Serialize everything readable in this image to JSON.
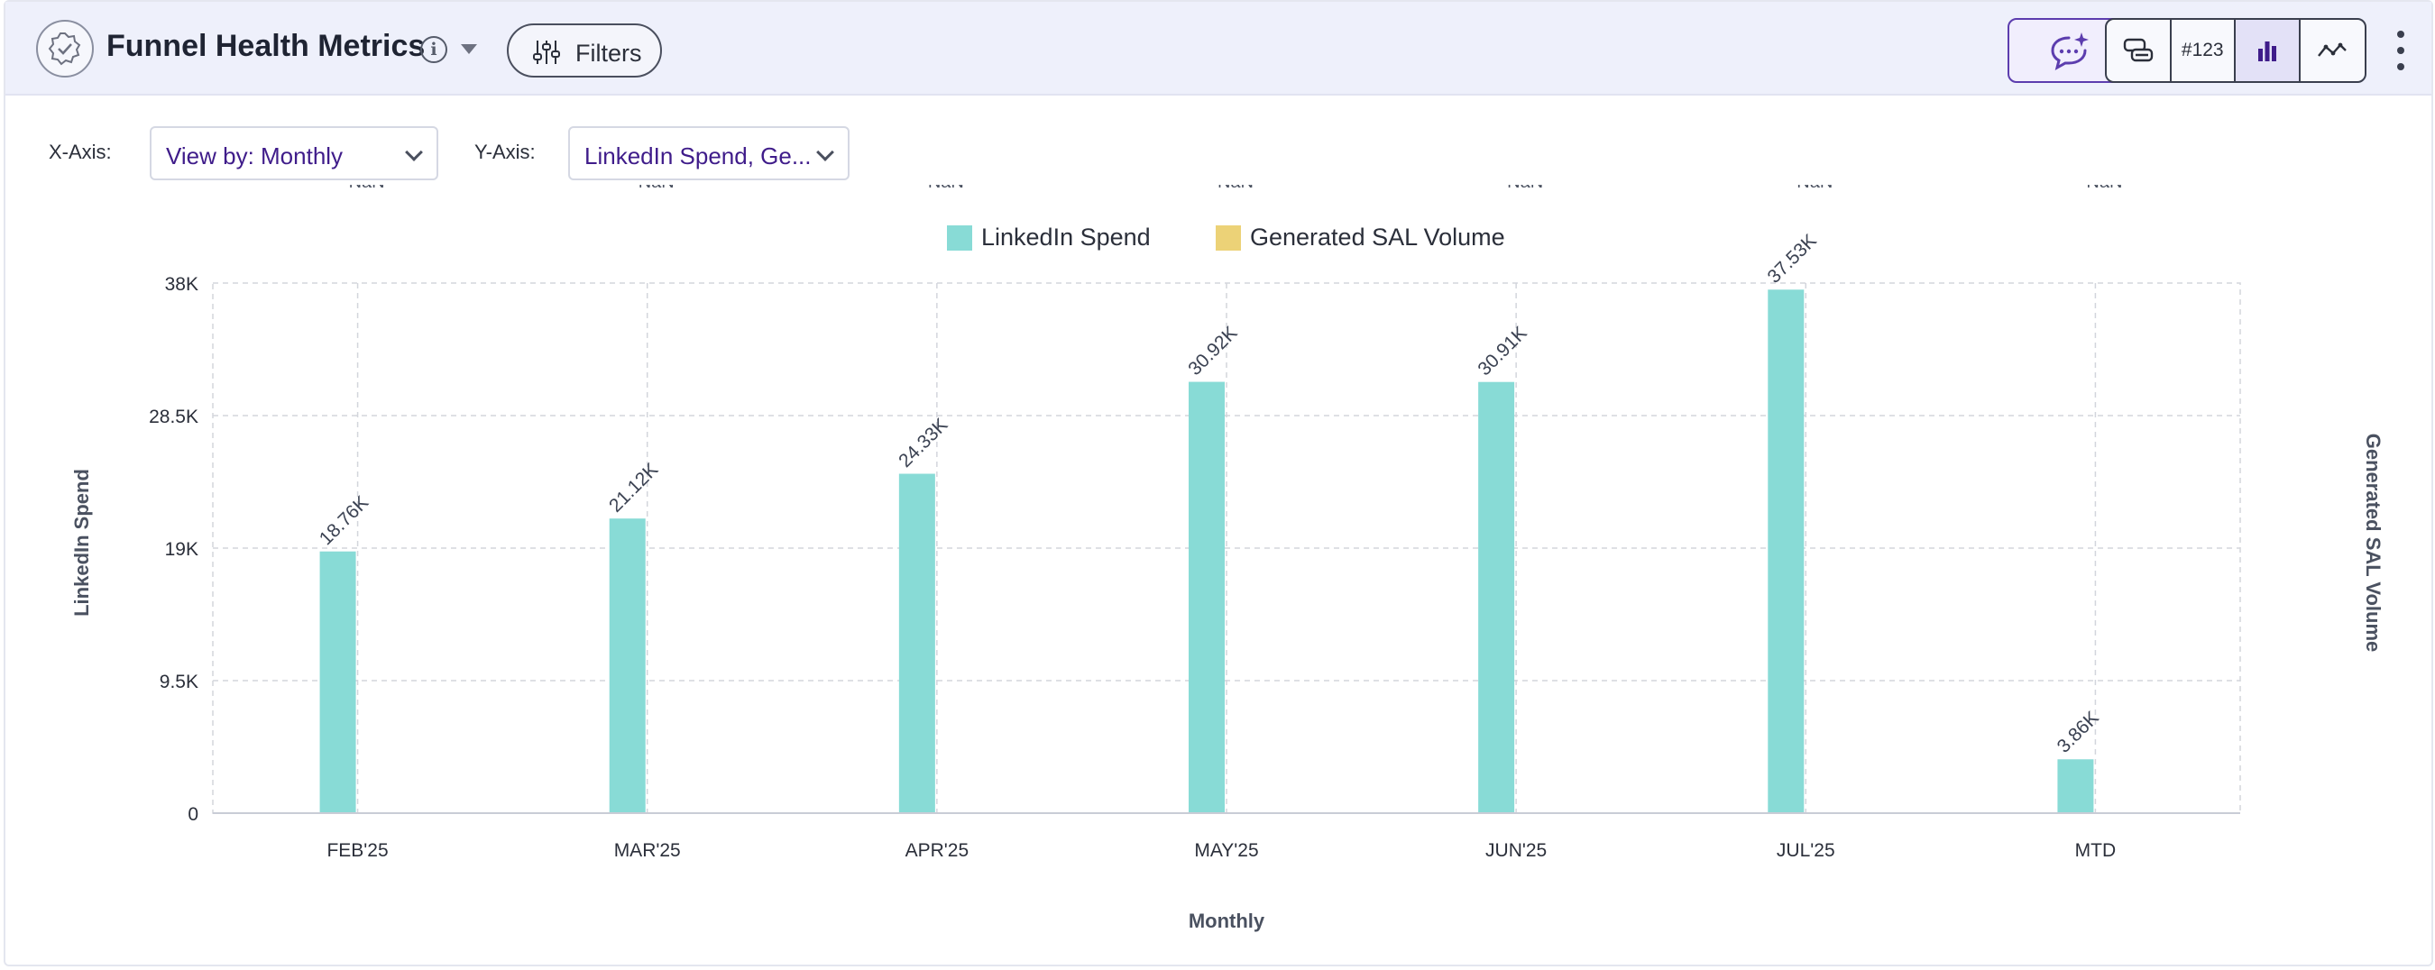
{
  "header": {
    "title": "Funnel Health Metrics",
    "info_icon": "info-icon",
    "filters_label": "Filters",
    "number_badge": "#123",
    "icons": [
      "verified-badge-icon",
      "sparkle-chat-icon",
      "table-view-icon",
      "bar-chart-icon",
      "line-chart-icon",
      "more-vertical-icon"
    ]
  },
  "controls": {
    "x_axis_label": "X-Axis:",
    "x_axis_value": "View by: Monthly",
    "y_axis_label": "Y-Axis:",
    "y_axis_value": "LinkedIn Spend, Ge..."
  },
  "colors": {
    "linkedin_spend": "#88dbd6",
    "sal_volume": "#ecd277",
    "accent": "#5c3dae"
  },
  "chart_data": {
    "type": "bar",
    "categories": [
      "FEB'25",
      "MAR'25",
      "APR'25",
      "MAY'25",
      "JUN'25",
      "JUL'25",
      "MTD"
    ],
    "series": [
      {
        "name": "LinkedIn Spend",
        "values": [
          18760,
          21120,
          24330,
          30920,
          30910,
          37530,
          3860
        ],
        "labels": [
          "18.76K",
          "21.12K",
          "24.33K",
          "30.92K",
          "30.91K",
          "37.53K",
          "3.86K"
        ],
        "axis": "left"
      },
      {
        "name": "Generated SAL Volume",
        "values": [
          null,
          null,
          null,
          null,
          null,
          null,
          null
        ],
        "labels": [
          "NaN",
          "NaN",
          "NaN",
          "NaN",
          "NaN",
          "NaN",
          "NaN"
        ],
        "axis": "right"
      }
    ],
    "xlabel": "Monthly",
    "ylabel": "LinkedIn Spend",
    "y2label": "Generated SAL Volume",
    "ylim": [
      0,
      38000
    ],
    "yticks": [
      0,
      9500,
      19000,
      28500,
      38000
    ],
    "ytick_labels": [
      "0",
      "9.5K",
      "19K",
      "28.5K",
      "38K"
    ],
    "grid": true,
    "legend": "top-center"
  }
}
